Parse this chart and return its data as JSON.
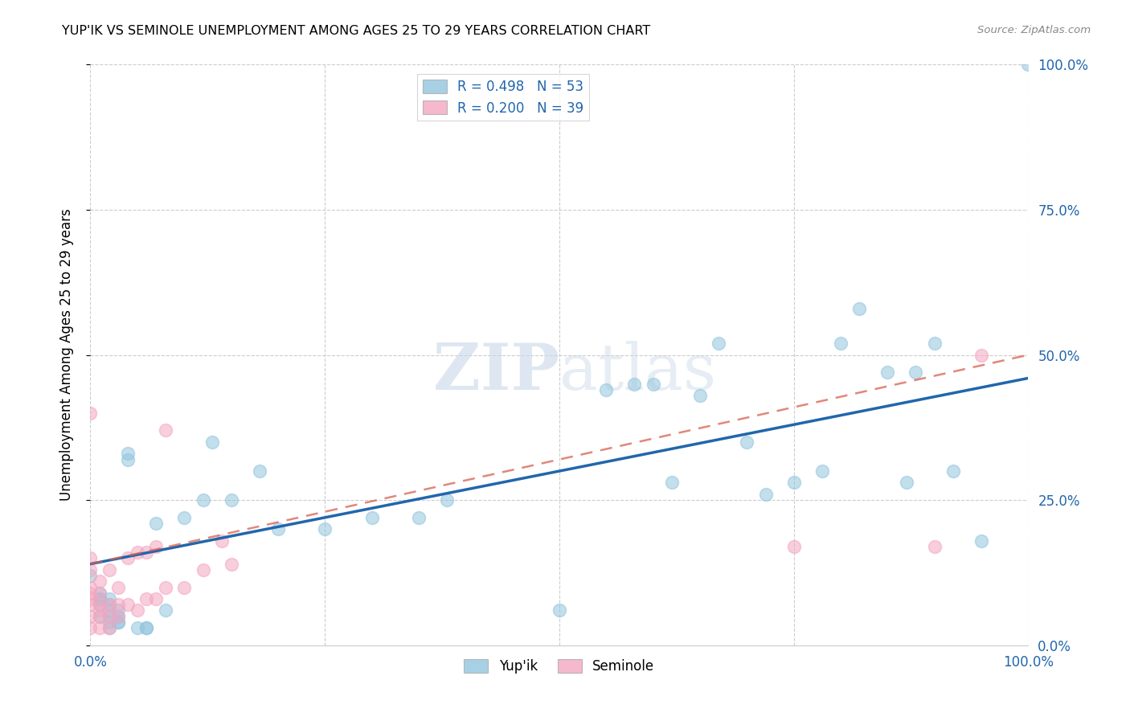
{
  "title": "YUP'IK VS SEMINOLE UNEMPLOYMENT AMONG AGES 25 TO 29 YEARS CORRELATION CHART",
  "source": "Source: ZipAtlas.com",
  "ylabel": "Unemployment Among Ages 25 to 29 years",
  "watermark_zip": "ZIP",
  "watermark_atlas": "atlas",
  "xlim": [
    0,
    1
  ],
  "ylim": [
    0,
    1
  ],
  "legend_label1": "R = 0.498   N = 53",
  "legend_label2": "R = 0.200   N = 39",
  "legend_name1": "Yup'ik",
  "legend_name2": "Seminole",
  "color_blue": "#92c5de",
  "color_pink": "#f4a6c0",
  "line_color_blue": "#2166ac",
  "line_color_pink": "#d6604d",
  "blue_line_x0": 0.0,
  "blue_line_y0": 0.14,
  "blue_line_x1": 1.0,
  "blue_line_y1": 0.46,
  "pink_line_x0": 0.0,
  "pink_line_y0": 0.14,
  "pink_line_x1": 1.0,
  "pink_line_y1": 0.5,
  "yupik_x": [
    0.0,
    0.01,
    0.01,
    0.01,
    0.02,
    0.02,
    0.02,
    0.03,
    0.03,
    0.04,
    0.04,
    0.05,
    0.06,
    0.06,
    0.07,
    0.08,
    0.1,
    0.12,
    0.13,
    0.15,
    0.2,
    0.3,
    0.35,
    0.5,
    0.55,
    0.58,
    0.62,
    0.65,
    0.67,
    0.7,
    0.72,
    0.75,
    0.8,
    0.82,
    0.85,
    0.87,
    0.9,
    0.92,
    0.95,
    1.0,
    0.03,
    0.03,
    0.02,
    0.02,
    0.01,
    0.01,
    0.18,
    0.25,
    0.38,
    0.6,
    0.78,
    0.88,
    0.02
  ],
  "yupik_y": [
    0.12,
    0.08,
    0.07,
    0.05,
    0.07,
    0.05,
    0.03,
    0.06,
    0.04,
    0.33,
    0.32,
    0.03,
    0.03,
    0.03,
    0.21,
    0.06,
    0.22,
    0.25,
    0.35,
    0.25,
    0.2,
    0.22,
    0.22,
    0.06,
    0.44,
    0.45,
    0.28,
    0.43,
    0.52,
    0.35,
    0.26,
    0.28,
    0.52,
    0.58,
    0.47,
    0.28,
    0.52,
    0.3,
    0.18,
    1.0,
    0.05,
    0.04,
    0.08,
    0.06,
    0.09,
    0.08,
    0.3,
    0.2,
    0.25,
    0.45,
    0.3,
    0.47,
    0.04
  ],
  "seminole_x": [
    0.0,
    0.0,
    0.0,
    0.0,
    0.0,
    0.0,
    0.0,
    0.0,
    0.0,
    0.01,
    0.01,
    0.01,
    0.01,
    0.01,
    0.01,
    0.02,
    0.02,
    0.02,
    0.02,
    0.03,
    0.03,
    0.03,
    0.04,
    0.04,
    0.05,
    0.05,
    0.06,
    0.06,
    0.07,
    0.07,
    0.08,
    0.08,
    0.1,
    0.12,
    0.14,
    0.15,
    0.75,
    0.9,
    0.95
  ],
  "seminole_y": [
    0.03,
    0.05,
    0.07,
    0.08,
    0.09,
    0.1,
    0.13,
    0.15,
    0.4,
    0.03,
    0.05,
    0.06,
    0.07,
    0.09,
    0.11,
    0.03,
    0.05,
    0.07,
    0.13,
    0.05,
    0.07,
    0.1,
    0.07,
    0.15,
    0.06,
    0.16,
    0.08,
    0.16,
    0.08,
    0.17,
    0.1,
    0.37,
    0.1,
    0.13,
    0.18,
    0.14,
    0.17,
    0.17,
    0.5
  ]
}
